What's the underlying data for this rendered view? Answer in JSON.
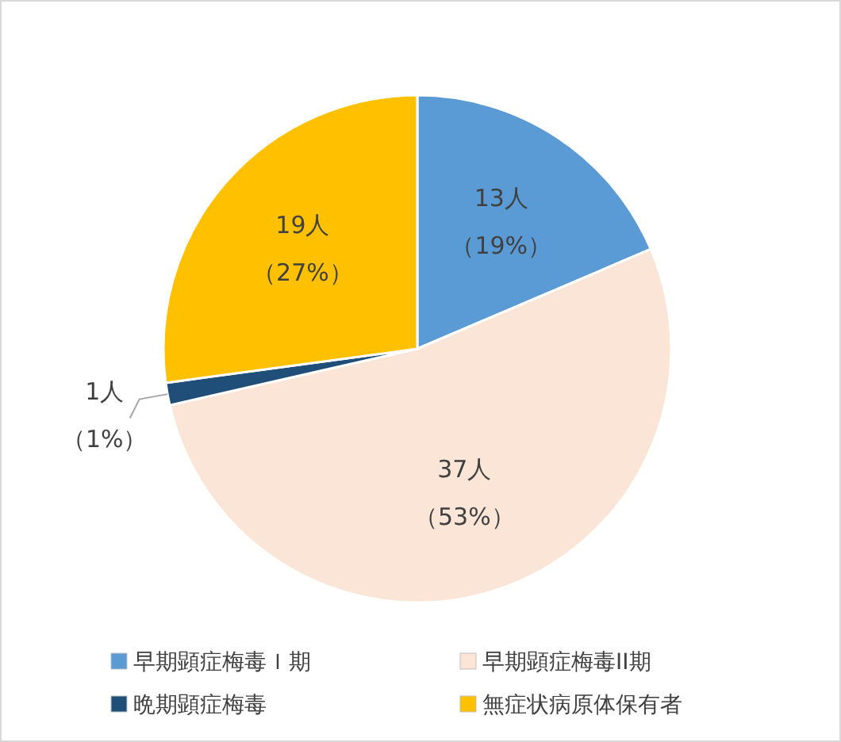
{
  "chart_data": {
    "type": "pie",
    "categories": [
      "早期顕症梅毒Ｉ期",
      "早期顕症梅毒II期",
      "晩期顕症梅毒",
      "無症状病原体保有者"
    ],
    "values": [
      13,
      37,
      1,
      19
    ],
    "colors": [
      "#5b9bd5",
      "#fbe5d6",
      "#1f4e79",
      "#ffc000"
    ],
    "value_labels": [
      "13人（19%）",
      "37人（53%）",
      "1人（1%）",
      "19人（27%）"
    ],
    "legend": "bottom"
  }
}
